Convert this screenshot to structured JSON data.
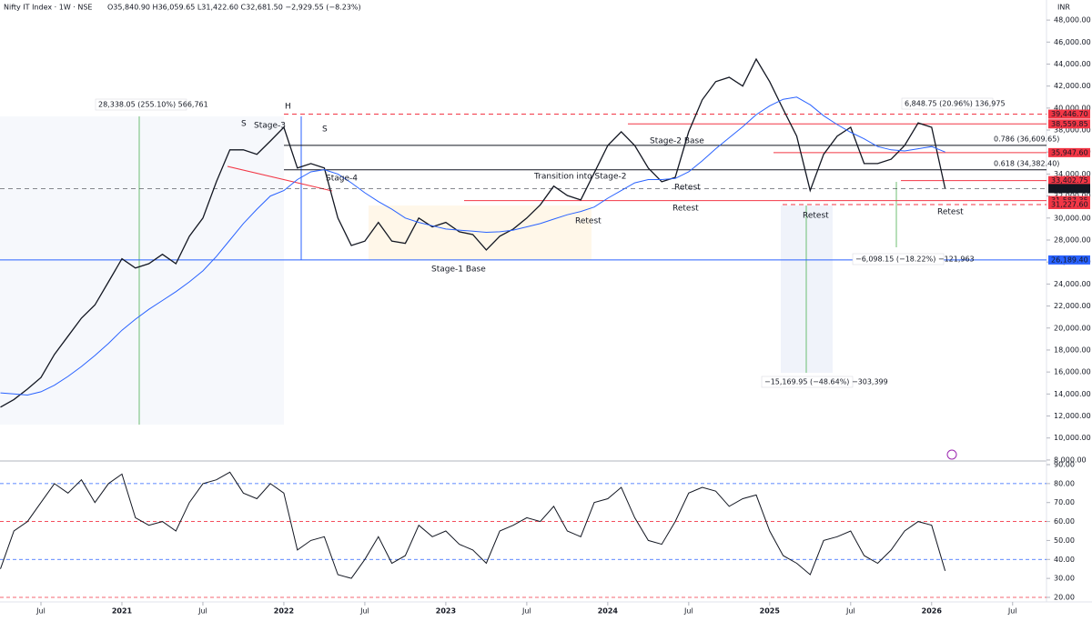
{
  "chart_data": [
    {
      "type": "line",
      "title": "Nifty IT Index · 1W · NSE",
      "subtitle": "O35,840.90 H36,059.65 L31,422.60 C32,681.50 −2,929.55 (−8.23%)",
      "y_label": "INR",
      "x": [
        "2020-04",
        "2020-05",
        "2020-06",
        "2020-07",
        "2020-08",
        "2020-09",
        "2020-10",
        "2020-11",
        "2020-12",
        "2021-01",
        "2021-02",
        "2021-03",
        "2021-04",
        "2021-05",
        "2021-06",
        "2021-07",
        "2021-08",
        "2021-09",
        "2021-10",
        "2021-11",
        "2021-12",
        "2022-01",
        "2022-02",
        "2022-03",
        "2022-04",
        "2022-05",
        "2022-06",
        "2022-07",
        "2022-08",
        "2022-09",
        "2022-10",
        "2022-11",
        "2022-12",
        "2023-01",
        "2023-02",
        "2023-03",
        "2023-04",
        "2023-05",
        "2023-06",
        "2023-07",
        "2023-08",
        "2023-09",
        "2023-10",
        "2023-11",
        "2023-12",
        "2024-01",
        "2024-02",
        "2024-03",
        "2024-04",
        "2024-05",
        "2024-06",
        "2024-07",
        "2024-08",
        "2024-09",
        "2024-10",
        "2024-11",
        "2024-12",
        "2025-01",
        "2025-02",
        "2025-03",
        "2025-04",
        "2025-05",
        "2025-06",
        "2025-07",
        "2025-08",
        "2025-09",
        "2025-10",
        "2025-11",
        "2025-12",
        "2026-01",
        "2026-02"
      ],
      "series": [
        {
          "color": "#131722",
          "values": [
            12800,
            13500,
            14450,
            15500,
            17600,
            19250,
            20900,
            22100,
            24200,
            26300,
            25450,
            25850,
            26700,
            25850,
            28350,
            30000,
            33300,
            36200,
            36200,
            35800,
            37000,
            38250,
            34550,
            34950,
            34550,
            30000,
            27500,
            27900,
            29600,
            27900,
            27700,
            30000,
            29200,
            29600,
            28750,
            28500,
            27100,
            28350,
            29000,
            30000,
            31200,
            32900,
            32050,
            31650,
            34100,
            36600,
            37850,
            36600,
            34550,
            33300,
            33700,
            37850,
            40750,
            42400,
            42800,
            42000,
            44450,
            42400,
            39900,
            37450,
            32500,
            35800,
            37450,
            38250,
            34950,
            34950,
            35350,
            36600,
            38650,
            38250,
            32681.5
          ]
        },
        {
          "color": "#2962ff",
          "values": [
            14100,
            14000,
            13900,
            14200,
            14800,
            15600,
            16500,
            17500,
            18600,
            19800,
            20800,
            21700,
            22500,
            23300,
            24200,
            25200,
            26500,
            28000,
            29500,
            30800,
            32000,
            32500,
            33500,
            34200,
            34400,
            34000,
            33200,
            32300,
            31500,
            30800,
            30000,
            29600,
            29300,
            29000,
            28900,
            28800,
            28700,
            28750,
            28900,
            29200,
            29500,
            29900,
            30300,
            30600,
            31000,
            31800,
            32500,
            33200,
            33500,
            33500,
            33600,
            34200,
            35200,
            36300,
            37300,
            38300,
            39400,
            40200,
            40800,
            41000,
            40300,
            39300,
            38500,
            37800,
            37200,
            36500,
            36200,
            36100,
            36300,
            36500,
            36000
          ]
        }
      ],
      "ylim": [
        7000,
        49000
      ],
      "yticks": [
        {
          "value": 8000,
          "label": "8,000.00"
        },
        {
          "value": 10000,
          "label": "10,000.00"
        },
        {
          "value": 12000,
          "label": "12,000.00"
        },
        {
          "value": 14000,
          "label": "14,000.00"
        },
        {
          "value": 16000,
          "label": "16,000.00"
        },
        {
          "value": 18000,
          "label": "18,000.00"
        },
        {
          "value": 20000,
          "label": "20,000.00"
        },
        {
          "value": 22000,
          "label": "22,000.00"
        },
        {
          "value": 24000,
          "label": "24,000.00"
        },
        {
          "value": 26000,
          "label": "26,000.00"
        },
        {
          "value": 28000,
          "label": "28,000.00"
        },
        {
          "value": 30000,
          "label": "30,000.00"
        },
        {
          "value": 32000,
          "label": "32,000.00"
        },
        {
          "value": 34000,
          "label": "34,000.00"
        },
        {
          "value": 36000,
          "label": "36,000.00"
        },
        {
          "value": 38000,
          "label": "38,000.00"
        },
        {
          "value": 40000,
          "label": "40,000.00"
        },
        {
          "value": 42000,
          "label": "42,000.00"
        },
        {
          "value": 44000,
          "label": "44,000.00"
        },
        {
          "value": 46000,
          "label": "46,000.00"
        },
        {
          "value": 48000,
          "label": "48,000.00"
        }
      ],
      "xticks": [
        {
          "value": "2020-07",
          "label": "Jul"
        },
        {
          "value": "2021-01",
          "label": "2021"
        },
        {
          "value": "2021-07",
          "label": "Jul"
        },
        {
          "value": "2022-01",
          "label": "2022"
        },
        {
          "value": "2022-07",
          "label": "Jul"
        },
        {
          "value": "2023-01",
          "label": "2023"
        },
        {
          "value": "2023-07",
          "label": "Jul"
        },
        {
          "value": "2024-01",
          "label": "2024"
        },
        {
          "value": "2024-07",
          "label": "Jul"
        },
        {
          "value": "2025-01",
          "label": "2025"
        },
        {
          "value": "2025-07",
          "label": "Jul"
        },
        {
          "value": "2026-01",
          "label": "2026"
        },
        {
          "value": "2026-07",
          "label": "Jul"
        }
      ],
      "levels": [
        {
          "value": 39446.7,
          "label": "39,446.70",
          "color": "#f23645",
          "dashed": true
        },
        {
          "value": 38559.85,
          "label": "38,559.85",
          "color": "#f23645",
          "dashed": false
        },
        {
          "value": 35947.6,
          "label": "35,947.60",
          "color": "#f23645",
          "dashed": false
        },
        {
          "value": 33402.75,
          "label": "33,402.75",
          "color": "#f23645",
          "dashed": false
        },
        {
          "value": 32681.5,
          "label": "32,681.50",
          "color": "#131722",
          "dashed": true
        },
        {
          "value": 31587.35,
          "label": "31,587.35",
          "color": "#f23645",
          "dashed": false
        },
        {
          "value": 31227.6,
          "label": "31,227.60",
          "color": "#f23645",
          "dashed": true
        },
        {
          "value": 26189.4,
          "label": "26,189.40",
          "color": "#2962ff",
          "dashed": false
        }
      ],
      "fib": [
        {
          "value": 36609.65,
          "label": "0.786 (36,609.65)"
        },
        {
          "value": 34382.4,
          "label": "0.618 (34,382.40)"
        }
      ],
      "annotations": [
        "S",
        "H",
        "S",
        "Stage-3",
        "Stage-4",
        "Stage-2 Base",
        "Transition into Stage-2",
        "Retest",
        "Retest",
        "Retest",
        "Retest",
        "Retest",
        "Stage-1 Base"
      ],
      "measurements": [
        "28,338.05 (255.10%) 566,761",
        "6,848.75 (20.96%) 136,975",
        "−6,098.15 (−18.22%) −121,963",
        "−15,169.95 (−48.64%) −303,399"
      ]
    },
    {
      "type": "line",
      "series": [
        {
          "color": "#131722",
          "values": [
            35,
            55,
            60,
            70,
            80,
            75,
            82,
            70,
            80,
            85,
            62,
            58,
            60,
            55,
            70,
            80,
            82,
            86,
            75,
            72,
            80,
            75,
            45,
            50,
            52,
            32,
            30,
            40,
            52,
            38,
            42,
            58,
            52,
            55,
            48,
            45,
            38,
            55,
            58,
            62,
            60,
            68,
            55,
            52,
            70,
            72,
            78,
            62,
            50,
            48,
            60,
            75,
            78,
            76,
            68,
            72,
            74,
            55,
            42,
            38,
            32,
            50,
            52,
            55,
            42,
            38,
            45,
            55,
            60,
            58,
            34
          ]
        }
      ],
      "ylim": [
        20,
        90
      ],
      "yticks": [
        {
          "value": 20,
          "label": "20.00"
        },
        {
          "value": 30,
          "label": "30.00"
        },
        {
          "value": 40,
          "label": "40.00"
        },
        {
          "value": 50,
          "label": "50.00"
        },
        {
          "value": 60,
          "label": "60.00"
        },
        {
          "value": 70,
          "label": "70.00"
        },
        {
          "value": 80,
          "label": "80.00"
        },
        {
          "value": 90,
          "label": "90.00"
        }
      ],
      "levels": [
        {
          "value": 80,
          "color": "#2962ff"
        },
        {
          "value": 60,
          "color": "#f23645"
        },
        {
          "value": 40,
          "color": "#2962ff"
        },
        {
          "value": 20,
          "color": "#f23645"
        }
      ]
    }
  ]
}
